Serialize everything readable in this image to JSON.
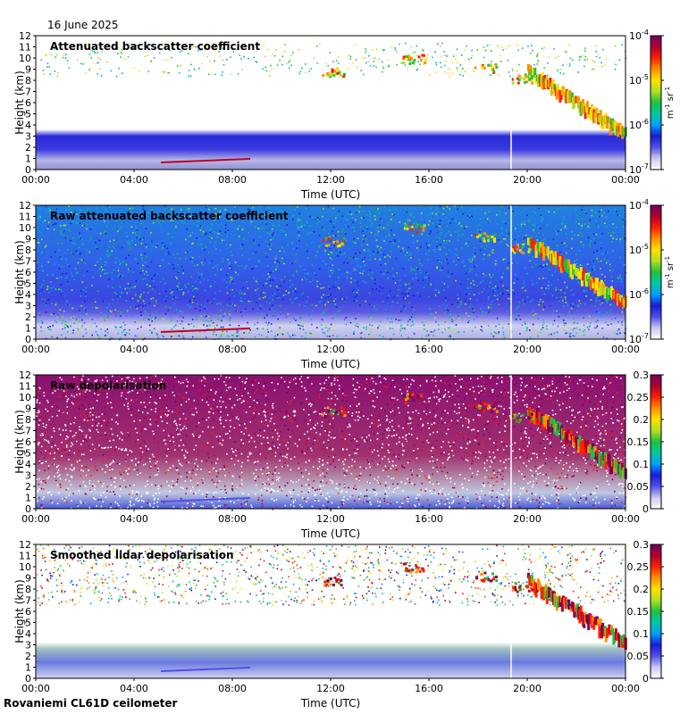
{
  "header": {
    "date": "16 June 2025"
  },
  "footer": {
    "site": "Rovaniemi CL61D ceilometer"
  },
  "colormap": [
    "#ffffff",
    "#c8c8f0",
    "#5050e8",
    "#1a1ad8",
    "#00a0ff",
    "#00c8a0",
    "#20c040",
    "#b0e020",
    "#ffe000",
    "#ff9000",
    "#ff2000",
    "#b00030",
    "#700060"
  ],
  "chart_data": [
    {
      "type": "heatmap",
      "title": "Attenuated backscatter coefficient",
      "xlabel": "Time (UTC)",
      "ylabel": "Height (km)",
      "x_ticks": [
        "00:00",
        "04:00",
        "08:00",
        "12:00",
        "16:00",
        "20:00",
        "00:00"
      ],
      "y_ticks": [
        "0",
        "1",
        "2",
        "3",
        "4",
        "5",
        "6",
        "7",
        "8",
        "9",
        "10",
        "11",
        "12"
      ],
      "ylim": [
        0,
        12
      ],
      "colorbar": {
        "scale": "log",
        "ticks": [
          "10<sup>-7</sup>",
          "10<sup>-6</sup>",
          "10<sup>-5</sup>",
          "10<sup>-4</sup>"
        ],
        "tick_labels": [
          "10-7",
          "10-6",
          "10-5",
          "10-4"
        ],
        "unit": "m-1 sr-1"
      }
    },
    {
      "type": "heatmap",
      "title": "Raw attenuated backscatter coefficient",
      "xlabel": "Time (UTC)",
      "ylabel": "Height (km)",
      "x_ticks": [
        "00:00",
        "04:00",
        "08:00",
        "12:00",
        "16:00",
        "20:00",
        "00:00"
      ],
      "y_ticks": [
        "0",
        "1",
        "2",
        "3",
        "4",
        "5",
        "6",
        "7",
        "8",
        "9",
        "10",
        "11",
        "12"
      ],
      "ylim": [
        0,
        12
      ],
      "colorbar": {
        "scale": "log",
        "tick_labels": [
          "10-7",
          "10-6",
          "10-5",
          "10-4"
        ],
        "unit": "m-1 sr-1"
      }
    },
    {
      "type": "heatmap",
      "title": "Raw depolarisation",
      "xlabel": "Time (UTC)",
      "ylabel": "Height (km)",
      "x_ticks": [
        "00:00",
        "04:00",
        "08:00",
        "12:00",
        "16:00",
        "20:00",
        "00:00"
      ],
      "y_ticks": [
        "0",
        "1",
        "2",
        "3",
        "4",
        "5",
        "6",
        "7",
        "8",
        "9",
        "10",
        "11",
        "12"
      ],
      "ylim": [
        0,
        12
      ],
      "colorbar": {
        "scale": "linear",
        "tick_labels": [
          "0",
          "0.05",
          "0.1",
          "0.15",
          "0.2",
          "0.25",
          "0.3"
        ],
        "unit": ""
      }
    },
    {
      "type": "heatmap",
      "title": "Smoothed lidar depolarisation",
      "xlabel": "Time (UTC)",
      "ylabel": "Height (km)",
      "x_ticks": [
        "00:00",
        "04:00",
        "08:00",
        "12:00",
        "16:00",
        "20:00",
        "00:00"
      ],
      "y_ticks": [
        "0",
        "1",
        "2",
        "3",
        "4",
        "5",
        "6",
        "7",
        "8",
        "9",
        "10",
        "11",
        "12"
      ],
      "ylim": [
        0,
        12
      ],
      "colorbar": {
        "scale": "linear",
        "tick_labels": [
          "0",
          "0.05",
          "0.1",
          "0.15",
          "0.2",
          "0.25",
          "0.3"
        ],
        "unit": ""
      }
    }
  ]
}
